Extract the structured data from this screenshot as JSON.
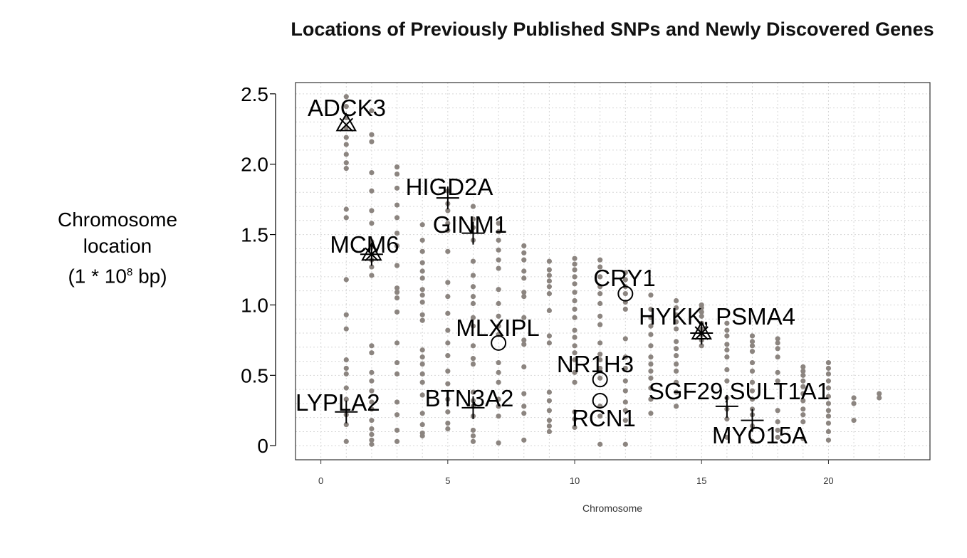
{
  "chart_data": {
    "type": "scatter",
    "title": "Locations of Previously Published SNPs and Newly Discovered Genes",
    "xlabel": "Chromosome",
    "ylabel": {
      "line1": "Chromosome",
      "line2": "location",
      "line3_prefix": "(1 * 10",
      "line3_exp": "8",
      "line3_suffix": " bp)"
    },
    "xlim": [
      -1,
      24
    ],
    "ylim": [
      -0.1,
      2.58
    ],
    "xticks": [
      0,
      5,
      10,
      15,
      20
    ],
    "yticks": [
      0,
      0.5,
      1.0,
      1.5,
      2.0,
      2.5
    ],
    "ytick_labels": [
      "0",
      "0.5",
      "1.0",
      "1.5",
      "2.0",
      "2.5"
    ],
    "grid": true,
    "snp_color": "#8c8580",
    "snp_series": [
      {
        "chromosome": 1,
        "locations": [
          0.03,
          0.15,
          0.22,
          0.33,
          0.41,
          0.51,
          0.55,
          0.61,
          0.83,
          0.93,
          1.18,
          1.62,
          1.68,
          1.97,
          2.01,
          2.07,
          2.14,
          2.19,
          2.26,
          2.33,
          2.41,
          2.48
        ]
      },
      {
        "chromosome": 2,
        "locations": [
          0.01,
          0.04,
          0.08,
          0.12,
          0.18,
          0.26,
          0.31,
          0.39,
          0.46,
          0.52,
          0.66,
          0.71,
          1.21,
          1.27,
          1.32,
          1.41,
          1.45,
          1.58,
          1.67,
          1.81,
          1.94,
          2.16,
          2.21,
          2.38
        ]
      },
      {
        "chromosome": 3,
        "locations": [
          0.03,
          0.11,
          0.22,
          0.31,
          0.51,
          0.59,
          0.73,
          0.95,
          1.05,
          1.09,
          1.12,
          1.28,
          1.42,
          1.51,
          1.62,
          1.71,
          1.83,
          1.93,
          1.98
        ]
      },
      {
        "chromosome": 4,
        "locations": [
          0.07,
          0.09,
          0.15,
          0.23,
          0.36,
          0.45,
          0.51,
          0.58,
          0.63,
          0.68,
          0.89,
          0.93,
          1.02,
          1.07,
          1.11,
          1.19,
          1.24,
          1.3,
          1.38,
          1.46,
          1.57
        ]
      },
      {
        "chromosome": 5,
        "locations": [
          0.12,
          0.16,
          0.24,
          0.33,
          0.44,
          0.53,
          0.64,
          0.73,
          0.82,
          0.94,
          1.06,
          1.16,
          1.38,
          1.53,
          1.58,
          1.67,
          1.72,
          1.81
        ]
      },
      {
        "chromosome": 6,
        "locations": [
          0.03,
          0.07,
          0.11,
          0.21,
          0.28,
          0.32,
          0.38,
          0.58,
          0.62,
          0.71,
          0.85,
          0.91,
          1.01,
          1.06,
          1.13,
          1.21,
          1.31,
          1.46,
          1.55,
          1.61,
          1.7
        ]
      },
      {
        "chromosome": 7,
        "locations": [
          0.02,
          0.21,
          0.28,
          0.33,
          0.45,
          0.52,
          0.59,
          0.79,
          0.85,
          0.92,
          1.01,
          1.11,
          1.26,
          1.32,
          1.39,
          1.46,
          1.52,
          1.58
        ]
      },
      {
        "chromosome": 8,
        "locations": [
          0.04,
          0.23,
          0.28,
          0.37,
          0.56,
          0.72,
          0.75,
          0.91,
          1.06,
          1.09,
          1.19,
          1.24,
          1.32,
          1.37,
          1.42
        ]
      },
      {
        "chromosome": 9,
        "locations": [
          0.1,
          0.14,
          0.18,
          0.25,
          0.32,
          0.38,
          0.73,
          0.78,
          0.96,
          1.08,
          1.13,
          1.17,
          1.21,
          1.25,
          1.31
        ]
      },
      {
        "chromosome": 10,
        "locations": [
          0.13,
          0.19,
          0.24,
          0.45,
          0.52,
          0.61,
          0.66,
          0.71,
          0.77,
          0.82,
          0.91,
          0.97,
          1.03,
          1.09,
          1.15,
          1.2,
          1.25,
          1.29,
          1.33
        ]
      },
      {
        "chromosome": 11,
        "locations": [
          0.01,
          0.21,
          0.28,
          0.48,
          0.55,
          0.61,
          0.65,
          0.73,
          0.86,
          0.92,
          1.01,
          1.08,
          1.13,
          1.2,
          1.27,
          1.32
        ]
      },
      {
        "chromosome": 12,
        "locations": [
          0.01,
          0.18,
          0.25,
          0.31,
          0.39,
          0.46,
          0.55,
          0.63,
          0.76,
          0.97,
          1.02,
          1.08,
          1.13,
          1.18,
          1.23
        ]
      },
      {
        "chromosome": 13,
        "locations": [
          0.23,
          0.33,
          0.41,
          0.48,
          0.53,
          0.58,
          0.63,
          0.71,
          0.79,
          0.85,
          0.91,
          0.97,
          1.07
        ]
      },
      {
        "chromosome": 14,
        "locations": [
          0.28,
          0.38,
          0.45,
          0.53,
          0.58,
          0.64,
          0.69,
          0.74,
          0.83,
          0.88,
          0.93,
          0.98,
          1.03
        ]
      },
      {
        "chromosome": 15,
        "locations": [
          0.71,
          0.75,
          0.79,
          0.83,
          0.87,
          0.92,
          0.95,
          0.98,
          1.0
        ]
      },
      {
        "chromosome": 16,
        "locations": [
          0.06,
          0.19,
          0.26,
          0.34,
          0.46,
          0.54,
          0.63,
          0.68,
          0.72,
          0.78,
          0.82,
          0.87
        ]
      },
      {
        "chromosome": 17,
        "locations": [
          0.03,
          0.14,
          0.22,
          0.26,
          0.33,
          0.39,
          0.45,
          0.53,
          0.59,
          0.67,
          0.71,
          0.74,
          0.78
        ]
      },
      {
        "chromosome": 18,
        "locations": [
          0.06,
          0.11,
          0.17,
          0.25,
          0.46,
          0.52,
          0.63,
          0.69,
          0.73,
          0.76
        ]
      },
      {
        "chromosome": 19,
        "locations": [
          0.05,
          0.17,
          0.22,
          0.26,
          0.32,
          0.37,
          0.42,
          0.46,
          0.5,
          0.53,
          0.56
        ]
      },
      {
        "chromosome": 20,
        "locations": [
          0.04,
          0.1,
          0.16,
          0.21,
          0.25,
          0.3,
          0.35,
          0.41,
          0.46,
          0.51,
          0.55,
          0.59
        ]
      },
      {
        "chromosome": 21,
        "locations": [
          0.18,
          0.3,
          0.34
        ]
      },
      {
        "chromosome": 22,
        "locations": [
          0.34,
          0.37
        ]
      }
    ],
    "genes": [
      {
        "label": "ADCK3",
        "chromosome": 1,
        "location": 2.28,
        "markers": [
          "triangle",
          "x"
        ]
      },
      {
        "label": "HIGD2A",
        "chromosome": 5,
        "location": 1.76,
        "markers": [
          "plus"
        ]
      },
      {
        "label": "GINM1",
        "chromosome": 6,
        "location": 1.51,
        "markers": [
          "plus"
        ]
      },
      {
        "label": "MCM6",
        "chromosome": 2,
        "location": 1.36,
        "markers": [
          "triangle",
          "x",
          "plus"
        ]
      },
      {
        "label": "CRY1",
        "chromosome": 12,
        "location": 1.08,
        "markers": [
          "circle"
        ]
      },
      {
        "label": "HYKK, PSMA4",
        "chromosome": 15,
        "location": 0.8,
        "markers": [
          "triangle",
          "x",
          "plus"
        ]
      },
      {
        "label": "MLXIPL",
        "chromosome": 7,
        "location": 0.73,
        "markers": [
          "circle"
        ]
      },
      {
        "label": "NR1H3",
        "chromosome": 11,
        "location": 0.47,
        "markers": [
          "circle"
        ]
      },
      {
        "label": "RCN1",
        "chromosome": 11,
        "location": 0.32,
        "markers": [
          "circle"
        ]
      },
      {
        "label": "SGF29,SULT1A1",
        "chromosome": 16,
        "location": 0.28,
        "markers": [
          "plus"
        ]
      },
      {
        "label": "MYO15A",
        "chromosome": 17,
        "location": 0.18,
        "markers": [
          "plus"
        ]
      },
      {
        "label": "BTN3A2",
        "chromosome": 6,
        "location": 0.27,
        "markers": [
          "plus"
        ]
      },
      {
        "label": "LYPLA2",
        "chromosome": 1,
        "location": 0.24,
        "markers": [
          "plus"
        ]
      }
    ]
  }
}
